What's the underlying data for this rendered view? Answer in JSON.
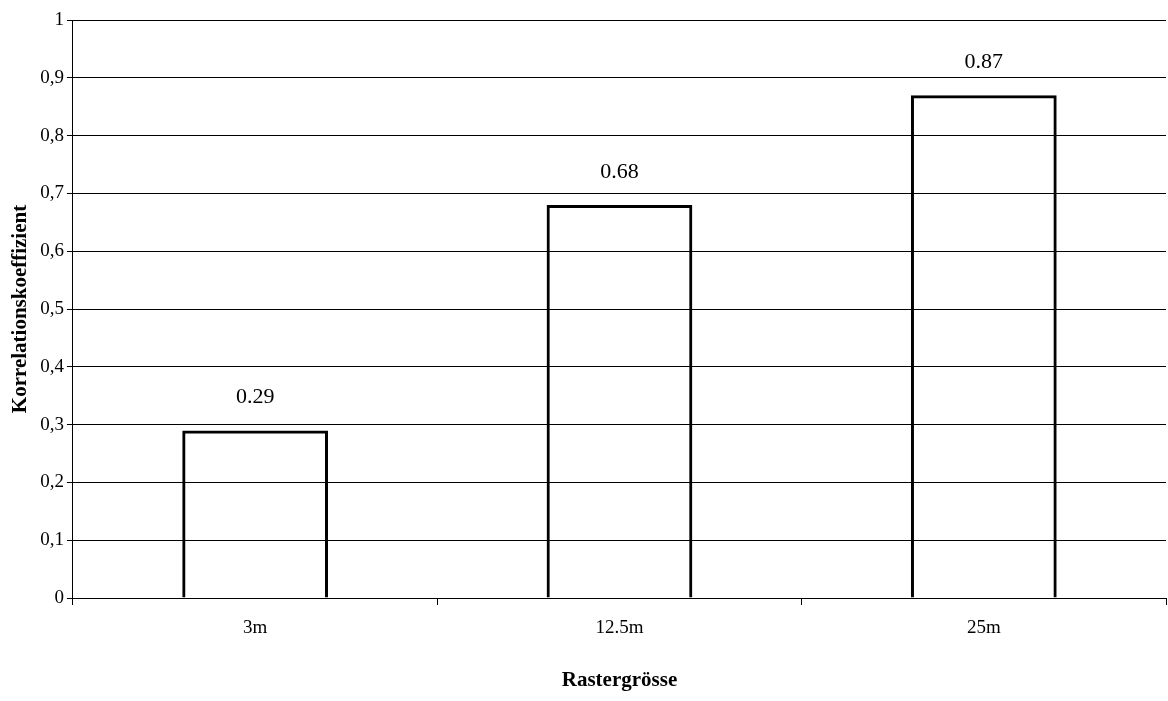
{
  "chart_data": {
    "type": "bar",
    "xlabel": "Rastergrösse",
    "ylabel": "Korrelationskoeffizient",
    "categories": [
      "3m",
      "12.5m",
      "25m"
    ],
    "values": [
      0.29,
      0.68,
      0.87
    ],
    "color": "#000000",
    "data_labels": true,
    "ylim": [
      0,
      1
    ],
    "yticks": [
      {
        "value": 0,
        "label": "0"
      },
      {
        "value": 0.1,
        "label": "0,1"
      },
      {
        "value": 0.2,
        "label": "0,2"
      },
      {
        "value": 0.3,
        "label": "0,3"
      },
      {
        "value": 0.4,
        "label": "0,4"
      },
      {
        "value": 0.5,
        "label": "0,5"
      },
      {
        "value": 0.6,
        "label": "0,6"
      },
      {
        "value": 0.7,
        "label": "0,7"
      },
      {
        "value": 0.8,
        "label": "0,8"
      },
      {
        "value": 0.9,
        "label": "0,9"
      },
      {
        "value": 1,
        "label": "1"
      }
    ],
    "grid": "y",
    "legend": false
  }
}
